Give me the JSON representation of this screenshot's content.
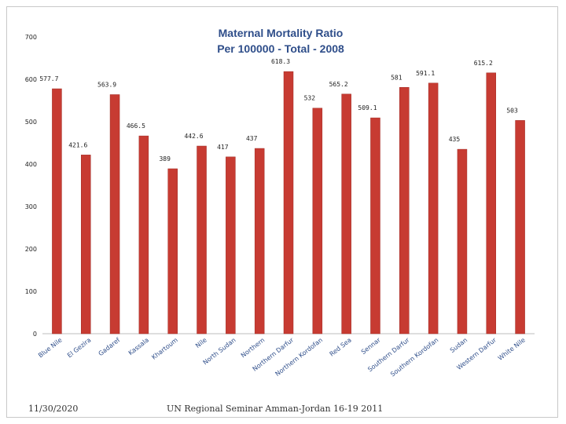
{
  "chart_data": {
    "type": "bar",
    "title_line1": "Maternal Mortality Ratio",
    "title_line2": "Per 100000 - Total - 2008",
    "categories": [
      "Blue Nile",
      "El Gezira",
      "Gadaref",
      "Kassala",
      "Khartoum",
      "Nile",
      "North Sudan",
      "Northern",
      "Northern Darfur",
      "Northern Kordofan",
      "Red Sea",
      "Sennar",
      "Southern Darfur",
      "Southern Kordofan",
      "Sudan",
      "Western Darfur",
      "White Nile"
    ],
    "values": [
      577.7,
      421.6,
      563.9,
      466.5,
      389,
      442.6,
      417,
      437,
      618.3,
      532,
      565.2,
      509.1,
      581,
      591.1,
      435,
      615.2,
      503
    ],
    "data_labels": [
      "577.7",
      "421.6",
      "563.9",
      "466.5",
      "389",
      "442.6",
      "417",
      "437",
      "618.3",
      "532",
      "565.2",
      "509.1",
      "581",
      "591.1",
      "435",
      "615.2",
      "503"
    ],
    "yticks": [
      "0",
      "100",
      "200",
      "300",
      "400",
      "500",
      "600",
      "700"
    ],
    "ylim": [
      0,
      700
    ],
    "xlabel": "",
    "ylabel": "",
    "grid": false,
    "legend": "none",
    "bar_color": "#c73b32",
    "title_color": "#2f4e8a"
  },
  "footer": {
    "date": "11/30/2020",
    "title": "UN Regional Seminar Amman-Jordan 16-19 2011"
  }
}
